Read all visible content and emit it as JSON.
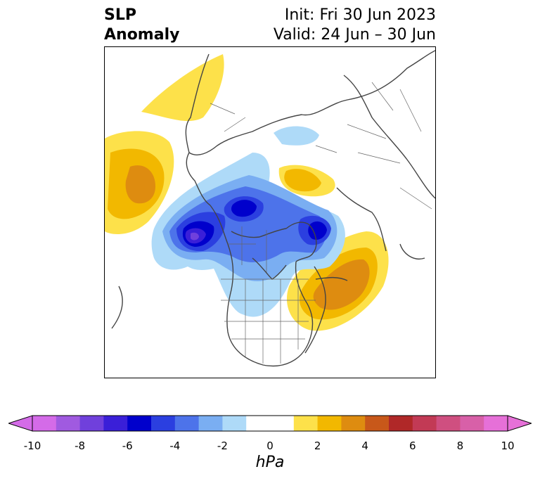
{
  "title": {
    "left_line1": "SLP",
    "left_line2": "Anomaly",
    "right_line1": "Init: Fri 30 Jun 2023",
    "right_line2": "Valid: 24 Jun – 30 Jun"
  },
  "colorbar": {
    "unit": "hPa",
    "tick_labels": [
      "-10",
      "-8",
      "-6",
      "-4",
      "-2",
      "0",
      "2",
      "4",
      "6",
      "8",
      "10"
    ],
    "bins": [
      {
        "from": -10,
        "to": -9,
        "color": "#d46be8"
      },
      {
        "from": -9,
        "to": -8,
        "color": "#a05ae0"
      },
      {
        "from": -8,
        "to": -7,
        "color": "#7040dc"
      },
      {
        "from": -7,
        "to": -6,
        "color": "#3a1fd8"
      },
      {
        "from": -6,
        "to": -5,
        "color": "#0000cc"
      },
      {
        "from": -5,
        "to": -4,
        "color": "#2b3fe0"
      },
      {
        "from": -4,
        "to": -3,
        "color": "#4d73ea"
      },
      {
        "from": -3,
        "to": -2,
        "color": "#7aaef2"
      },
      {
        "from": -2,
        "to": -1,
        "color": "#aedaf8"
      },
      {
        "from": -1,
        "to": 1,
        "color": "#ffffff"
      },
      {
        "from": 1,
        "to": 2,
        "color": "#fde14a"
      },
      {
        "from": 2,
        "to": 3,
        "color": "#f2b800"
      },
      {
        "from": 3,
        "to": 4,
        "color": "#de8c10"
      },
      {
        "from": 4,
        "to": 5,
        "color": "#c8581a"
      },
      {
        "from": 5,
        "to": 6,
        "color": "#b02828"
      },
      {
        "from": 6,
        "to": 7,
        "color": "#c23a55"
      },
      {
        "from": 7,
        "to": 8,
        "color": "#cf4f80"
      },
      {
        "from": 8,
        "to": 9,
        "color": "#d860a8"
      },
      {
        "from": 9,
        "to": 10,
        "color": "#e670d8"
      }
    ],
    "under_color": "#d46be8",
    "over_color": "#e670d8"
  },
  "map": {
    "projection": "north-polar-stereographic",
    "field": "sea level pressure anomaly",
    "coast_color": "#444444",
    "features": [
      {
        "name": "high-north-pacific",
        "sign": "positive",
        "peak_hpa": 4
      },
      {
        "name": "high-north-atlantic",
        "sign": "positive",
        "peak_hpa": 4
      },
      {
        "name": "high-scandinavia",
        "sign": "positive",
        "peak_hpa": 2
      },
      {
        "name": "high-siberia",
        "sign": "positive",
        "peak_hpa": 3
      },
      {
        "name": "low-gulf-of-alaska",
        "sign": "negative",
        "peak_hpa": -8
      },
      {
        "name": "low-beaufort-sea",
        "sign": "negative",
        "peak_hpa": -6
      },
      {
        "name": "low-baffin-bay",
        "sign": "negative",
        "peak_hpa": -7
      }
    ]
  }
}
